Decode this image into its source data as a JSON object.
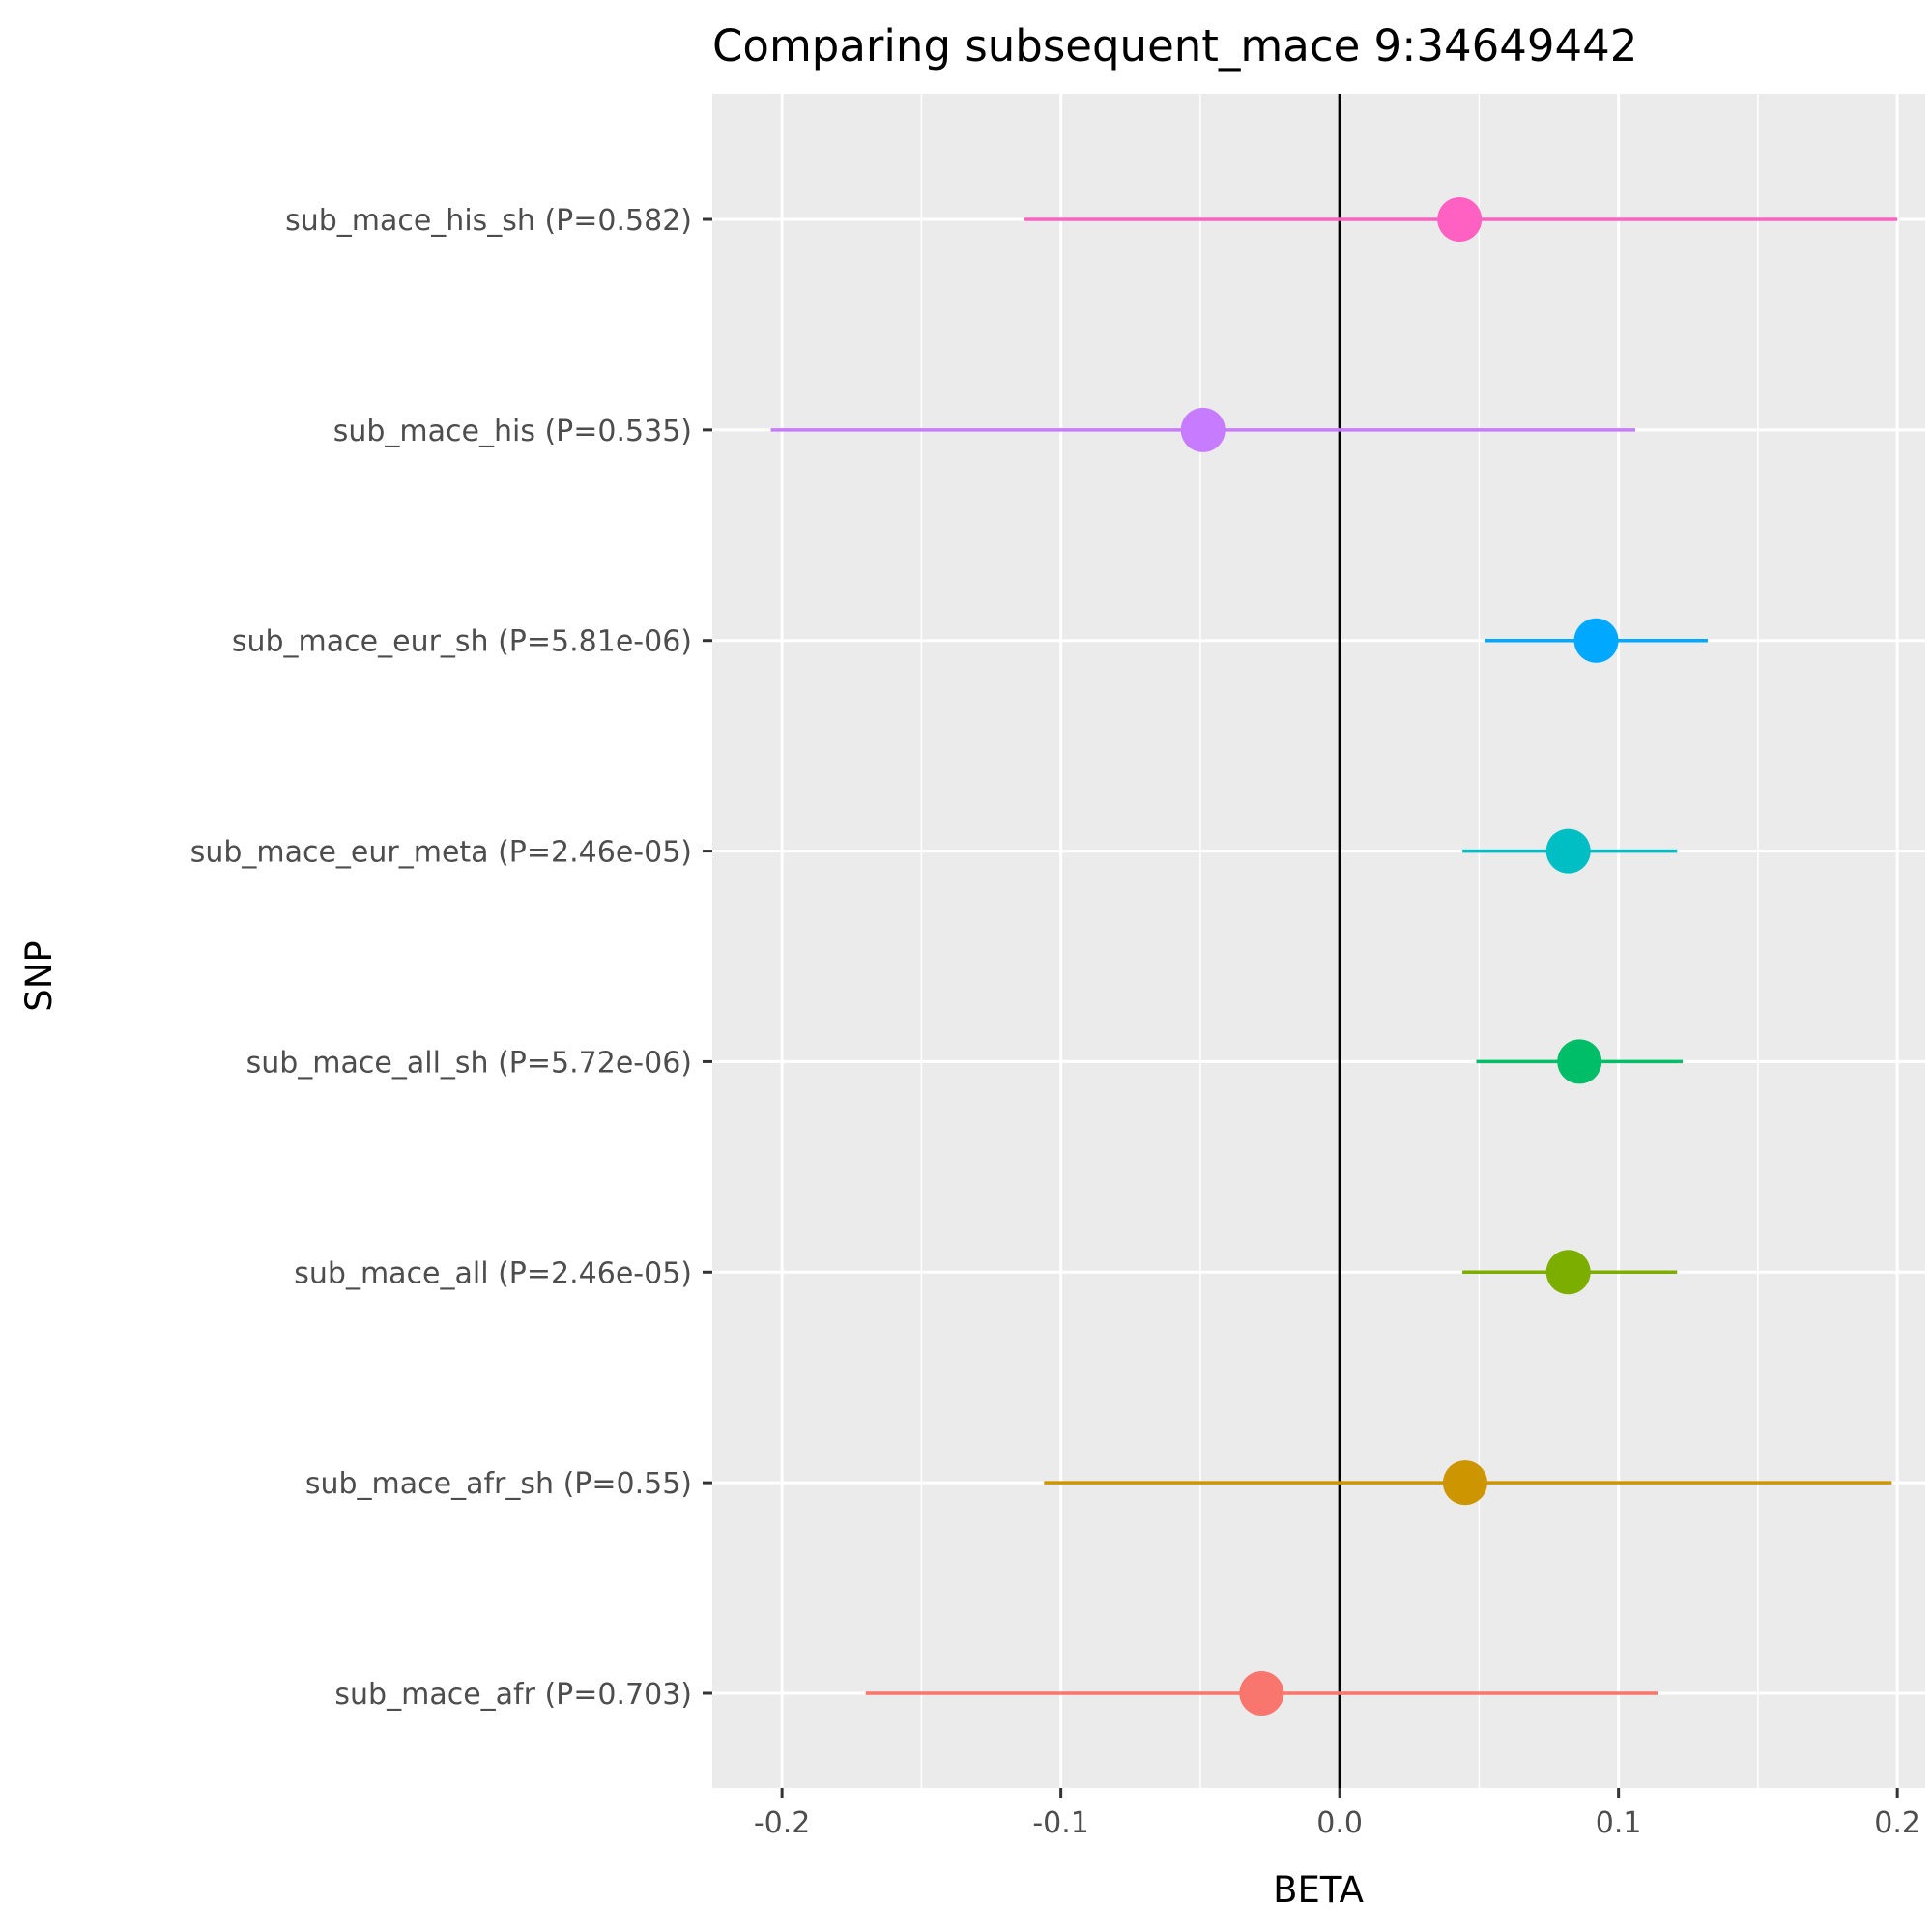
{
  "chart_data": {
    "type": "forest",
    "title": "Comparing subsequent_mace 9:34649442",
    "xlabel": "BETA",
    "ylabel": "SNP",
    "xlim": [
      -0.225,
      0.21
    ],
    "x_ticks": [
      -0.2,
      -0.1,
      0.0,
      0.1,
      0.2
    ],
    "x_tick_labels": [
      "-0.2",
      "-0.1",
      "0.0",
      "0.1",
      "0.2"
    ],
    "reference_line_x": 0,
    "grid": true,
    "legend": "none",
    "rows": [
      {
        "label": "sub_mace_his_sh (P=0.582)",
        "beta": 0.043,
        "lower": -0.113,
        "upper": 0.2,
        "color": "#FF61C3"
      },
      {
        "label": "sub_mace_his (P=0.535)",
        "beta": -0.049,
        "lower": -0.204,
        "upper": 0.106,
        "color": "#C77CFF"
      },
      {
        "label": "sub_mace_eur_sh (P=5.81e-06)",
        "beta": 0.092,
        "lower": 0.052,
        "upper": 0.132,
        "color": "#00A9FF"
      },
      {
        "label": "sub_mace_eur_meta (P=2.46e-05)",
        "beta": 0.082,
        "lower": 0.044,
        "upper": 0.121,
        "color": "#00BFC4"
      },
      {
        "label": "sub_mace_all_sh (P=5.72e-06)",
        "beta": 0.086,
        "lower": 0.049,
        "upper": 0.123,
        "color": "#00BE67"
      },
      {
        "label": "sub_mace_all (P=2.46e-05)",
        "beta": 0.082,
        "lower": 0.044,
        "upper": 0.121,
        "color": "#7CAE00"
      },
      {
        "label": "sub_mace_afr_sh (P=0.55)",
        "beta": 0.045,
        "lower": -0.106,
        "upper": 0.198,
        "color": "#CD9600"
      },
      {
        "label": "sub_mace_afr (P=0.703)",
        "beta": -0.028,
        "lower": -0.17,
        "upper": 0.114,
        "color": "#F8766D"
      }
    ]
  }
}
